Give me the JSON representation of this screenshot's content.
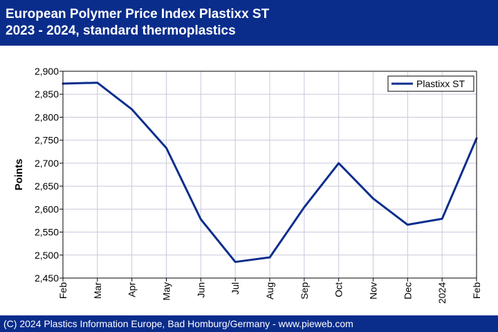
{
  "header": {
    "title_line1": "European Polymer Price Index Plastixx ST",
    "title_line2": "2023 - 2024, standard thermoplastics"
  },
  "footer": {
    "text": "(C) 2024 Plastics Information Europe, Bad Homburg/Germany - www.pieweb.com"
  },
  "colors": {
    "header_bg": "#0a2d8c",
    "series": "#0a2d8c",
    "grid": "#c8c8dc"
  },
  "chart_data": {
    "type": "line",
    "title": "",
    "xlabel": "",
    "ylabel": "Points",
    "categories": [
      "Feb",
      "Mar",
      "Apr",
      "May",
      "Jun",
      "Jul",
      "Aug",
      "Sep",
      "Oct",
      "Nov",
      "Dec",
      "2024",
      "Feb"
    ],
    "series": [
      {
        "name": "Plastixx ST",
        "values": [
          2873,
          2875,
          2817,
          2733,
          2578,
          2485,
          2495,
          2604,
          2700,
          2623,
          2566,
          2579,
          2754
        ]
      }
    ],
    "ylim": [
      2450,
      2900
    ],
    "yticks": [
      2450,
      2500,
      2550,
      2600,
      2650,
      2700,
      2750,
      2800,
      2850,
      2900
    ],
    "ytick_labels": [
      "2,450",
      "2,500",
      "2,550",
      "2,600",
      "2,650",
      "2,700",
      "2,750",
      "2,800",
      "2,850",
      "2,900"
    ],
    "grid": true,
    "legend_position": "top-right"
  }
}
